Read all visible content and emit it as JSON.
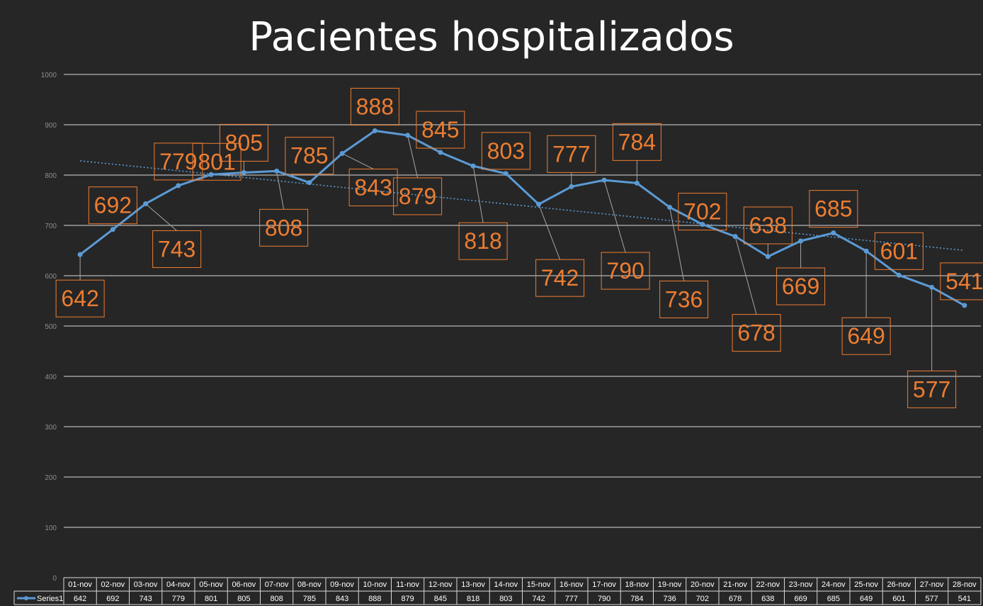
{
  "chart_data": {
    "type": "line",
    "title": "Pacientes hospitalizados",
    "categories": [
      "01-nov",
      "02-nov",
      "03-nov",
      "04-nov",
      "05-nov",
      "06-nov",
      "07-nov",
      "08-nov",
      "09-nov",
      "10-nov",
      "11-nov",
      "12-nov",
      "13-nov",
      "14-nov",
      "15-nov",
      "16-nov",
      "17-nov",
      "18-nov",
      "19-nov",
      "20-nov",
      "21-nov",
      "22-nov",
      "23-nov",
      "24-nov",
      "25-nov",
      "26-nov",
      "27-nov",
      "28-nov"
    ],
    "series": [
      {
        "name": "Series1",
        "values": [
          642,
          692,
          743,
          779,
          801,
          805,
          808,
          785,
          843,
          888,
          879,
          845,
          818,
          803,
          742,
          777,
          790,
          784,
          736,
          702,
          678,
          638,
          669,
          685,
          649,
          601,
          577,
          541
        ]
      }
    ],
    "ylim": [
      0,
      1000
    ],
    "yticks": [
      0,
      100,
      200,
      300,
      400,
      500,
      600,
      700,
      800,
      900,
      1000
    ],
    "trendline": {
      "type": "linear"
    },
    "data_labels": true,
    "data_table": true,
    "grid": true,
    "colors": {
      "series": "#5b9bd5",
      "labels": "#ed7d31",
      "background": "#262626"
    }
  }
}
